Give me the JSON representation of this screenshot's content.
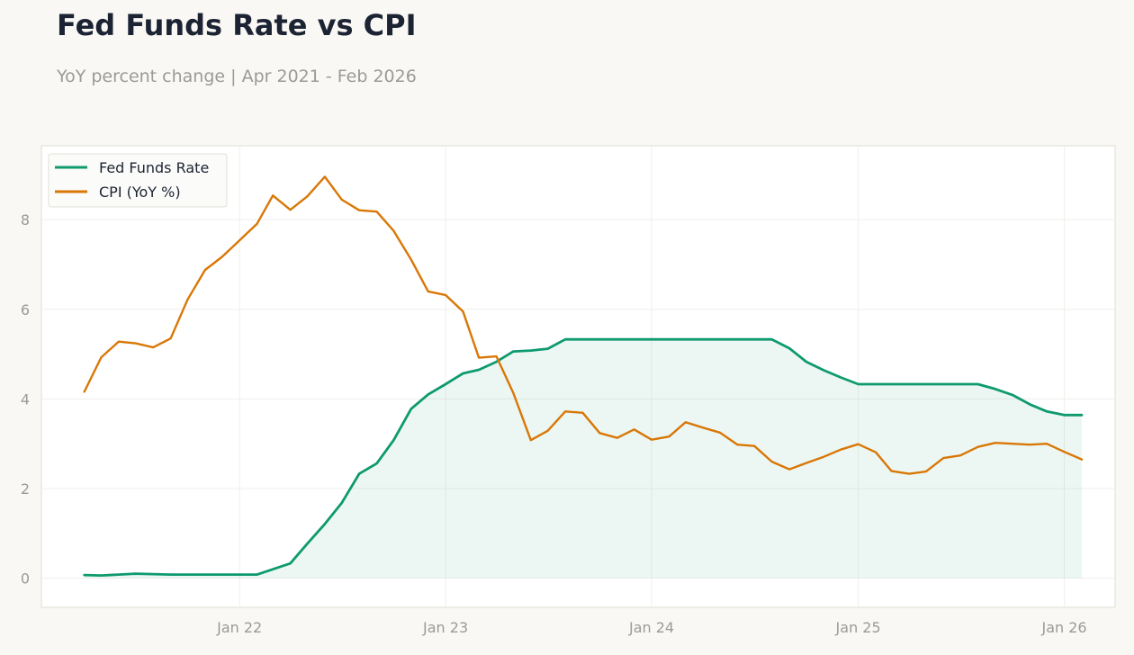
{
  "header": {
    "title": "Fed Funds Rate vs CPI",
    "subtitle": "YoY percent change | Apr 2021 - Feb 2026"
  },
  "colors": {
    "background": "#f9f8f4",
    "plot_background": "#ffffff",
    "fed_funds": "#0e9a6e",
    "cpi": "#d97706",
    "grid": "#efefec",
    "tick_text": "#9a9a96",
    "title_text": "#1c2333"
  },
  "chart_data": {
    "type": "line",
    "title": "Fed Funds Rate vs CPI",
    "subtitle": "YoY percent change | Apr 2021 - Feb 2026",
    "xlabel": "",
    "ylabel": "",
    "ylim": [
      -0.65,
      9.65
    ],
    "xlim": [
      "2021-01-15",
      "2026-04-01"
    ],
    "grid": true,
    "legend_position": "top-left",
    "x_ticks": [
      "2022-01-01",
      "2023-01-01",
      "2024-01-01",
      "2025-01-01",
      "2026-01-01"
    ],
    "x_tick_labels": [
      "Jan 22",
      "Jan 23",
      "Jan 24",
      "Jan 25",
      "Jan 26"
    ],
    "y_ticks": [
      0,
      2,
      4,
      6,
      8
    ],
    "y_tick_labels": [
      "0",
      "2",
      "4",
      "6",
      "8"
    ],
    "x": [
      "2021-04",
      "2021-05",
      "2021-06",
      "2021-07",
      "2021-08",
      "2021-09",
      "2021-10",
      "2021-11",
      "2021-12",
      "2022-01",
      "2022-02",
      "2022-03",
      "2022-04",
      "2022-05",
      "2022-06",
      "2022-07",
      "2022-08",
      "2022-09",
      "2022-10",
      "2022-11",
      "2022-12",
      "2023-01",
      "2023-02",
      "2023-03",
      "2023-04",
      "2023-05",
      "2023-06",
      "2023-07",
      "2023-08",
      "2023-09",
      "2023-10",
      "2023-11",
      "2023-12",
      "2024-01",
      "2024-02",
      "2024-03",
      "2024-04",
      "2024-05",
      "2024-06",
      "2024-07",
      "2024-08",
      "2024-09",
      "2024-10",
      "2024-11",
      "2024-12",
      "2025-01",
      "2025-02",
      "2025-03",
      "2025-04",
      "2025-05",
      "2025-06",
      "2025-07",
      "2025-08",
      "2025-09",
      "2025-10",
      "2025-11",
      "2025-12",
      "2026-01",
      "2026-02"
    ],
    "series": [
      {
        "name": "Fed Funds Rate",
        "color": "#0e9a6e",
        "fill": true,
        "values": [
          0.07,
          0.06,
          0.08,
          0.1,
          0.09,
          0.08,
          0.08,
          0.08,
          0.08,
          0.08,
          0.08,
          0.2,
          0.33,
          0.77,
          1.21,
          1.68,
          2.33,
          2.56,
          3.08,
          3.78,
          4.1,
          4.33,
          4.57,
          4.65,
          4.83,
          5.06,
          5.08,
          5.12,
          5.33,
          5.33,
          5.33,
          5.33,
          5.33,
          5.33,
          5.33,
          5.33,
          5.33,
          5.33,
          5.33,
          5.33,
          5.33,
          5.13,
          4.83,
          4.64,
          4.48,
          4.33,
          4.33,
          4.33,
          4.33,
          4.33,
          4.33,
          4.33,
          4.33,
          4.22,
          4.09,
          3.88,
          3.72,
          3.64,
          3.64
        ]
      },
      {
        "name": "CPI (YoY %)",
        "color": "#d97706",
        "fill": false,
        "values": [
          4.16,
          4.93,
          5.28,
          5.24,
          5.15,
          5.35,
          6.22,
          6.88,
          7.17,
          7.54,
          7.91,
          8.54,
          8.22,
          8.52,
          8.96,
          8.45,
          8.21,
          8.18,
          7.75,
          7.11,
          6.4,
          6.32,
          5.95,
          4.92,
          4.95,
          4.13,
          3.08,
          3.29,
          3.72,
          3.69,
          3.24,
          3.13,
          3.32,
          3.09,
          3.16,
          3.48,
          3.36,
          3.25,
          2.98,
          2.95,
          2.6,
          2.43,
          2.57,
          2.71,
          2.87,
          2.99,
          2.81,
          2.39,
          2.33,
          2.38,
          2.68,
          2.74,
          2.93,
          3.02,
          3.0,
          2.98,
          3.0,
          2.82,
          2.65
        ]
      }
    ]
  }
}
